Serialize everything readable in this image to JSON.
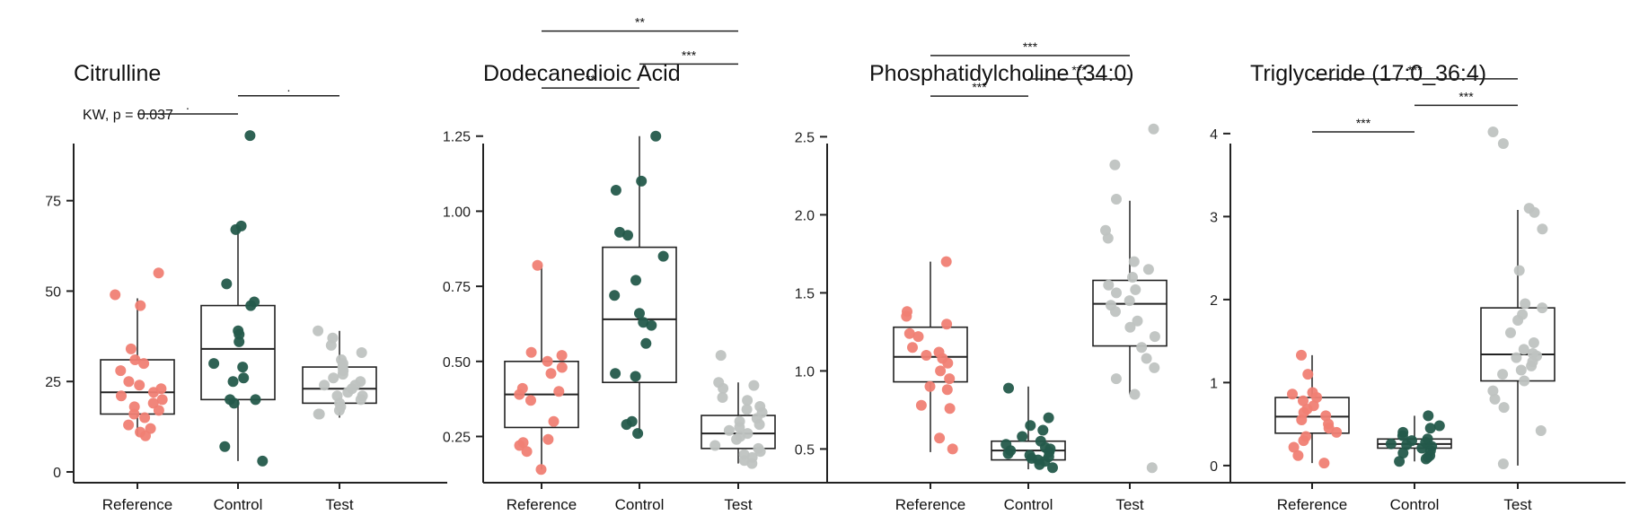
{
  "chart_data": [
    {
      "type": "box",
      "title": "Citrulline",
      "annotation": "KW, p = 0.037",
      "categories": [
        "Reference",
        "Control",
        "Test"
      ],
      "colors": {
        "Reference": "#F08074",
        "Control": "#245A4B",
        "Test": "#BFC3C1"
      },
      "ylim": [
        -1,
        97
      ],
      "yticks": [
        0,
        25,
        50,
        75
      ],
      "ytick_labels": [
        "0",
        "25",
        "50",
        "75"
      ],
      "boxes": [
        {
          "category": "Reference",
          "q1": 16,
          "median": 22,
          "q3": 31,
          "whisker_low": 10,
          "whisker_high": 48
        },
        {
          "category": "Control",
          "q1": 20,
          "median": 34,
          "q3": 46,
          "whisker_low": 3,
          "whisker_high": 68
        },
        {
          "category": "Test",
          "q1": 19,
          "median": 23,
          "q3": 29,
          "whisker_low": 15,
          "whisker_high": 39
        }
      ],
      "points": {
        "Reference": [
          55,
          49,
          46,
          34,
          31,
          30,
          28,
          25,
          24,
          23,
          22,
          21,
          20,
          19,
          18,
          17,
          16,
          15,
          13,
          12,
          11,
          10
        ],
        "Control": [
          93,
          68,
          67,
          52,
          47,
          46,
          39,
          38,
          36,
          30,
          29,
          26,
          25,
          20,
          20,
          19,
          7,
          3
        ],
        "Test": [
          39,
          37,
          35,
          33,
          31,
          30,
          29,
          28,
          27,
          26,
          25,
          24,
          24,
          23,
          22,
          21,
          21,
          20,
          19,
          18,
          17,
          16,
          16
        ]
      },
      "comparisons": [
        {
          "from": "Reference",
          "to": "Control",
          "label": ".",
          "y": 99
        },
        {
          "from": "Control",
          "to": "Test",
          "label": ".",
          "y": 104
        }
      ]
    },
    {
      "type": "box",
      "title": "Dodecanedioic  Acid",
      "categories": [
        "Reference",
        "Control",
        "Test"
      ],
      "colors": {
        "Reference": "#F08074",
        "Control": "#245A4B",
        "Test": "#BFC3C1"
      },
      "ylim": [
        0.12,
        1.3
      ],
      "yticks": [
        0.25,
        0.5,
        0.75,
        1.0,
        1.25
      ],
      "ytick_labels": [
        "0.25",
        "0.50",
        "0.75",
        "1.00",
        "1.25"
      ],
      "boxes": [
        {
          "category": "Reference",
          "q1": 0.28,
          "median": 0.39,
          "q3": 0.5,
          "whisker_low": 0.14,
          "whisker_high": 0.82
        },
        {
          "category": "Control",
          "q1": 0.43,
          "median": 0.64,
          "q3": 0.88,
          "whisker_low": 0.26,
          "whisker_high": 1.25
        },
        {
          "category": "Test",
          "q1": 0.21,
          "median": 0.26,
          "q3": 0.32,
          "whisker_low": 0.16,
          "whisker_high": 0.43
        }
      ],
      "points": {
        "Reference": [
          0.82,
          0.53,
          0.52,
          0.5,
          0.48,
          0.46,
          0.41,
          0.4,
          0.39,
          0.37,
          0.3,
          0.24,
          0.23,
          0.22,
          0.2,
          0.14
        ],
        "Control": [
          1.25,
          1.1,
          1.07,
          0.93,
          0.92,
          0.85,
          0.77,
          0.72,
          0.66,
          0.63,
          0.62,
          0.56,
          0.46,
          0.45,
          0.3,
          0.29,
          0.26
        ],
        "Test": [
          0.52,
          0.43,
          0.42,
          0.41,
          0.38,
          0.37,
          0.35,
          0.34,
          0.33,
          0.31,
          0.3,
          0.29,
          0.28,
          0.27,
          0.26,
          0.25,
          0.24,
          0.22,
          0.21,
          0.2,
          0.19,
          0.18,
          0.17,
          0.16
        ]
      },
      "comparisons": [
        {
          "from": "Reference",
          "to": "Control",
          "label": "**",
          "y": 1.41
        },
        {
          "from": "Control",
          "to": "Test",
          "label": "***",
          "y": 1.49
        },
        {
          "from": "Reference",
          "to": "Test",
          "label": "**",
          "y": 1.6
        }
      ]
    },
    {
      "type": "box",
      "title": "Phosphatidylcholine (34:0)",
      "categories": [
        "Reference",
        "Control",
        "Test"
      ],
      "colors": {
        "Reference": "#F08074",
        "Control": "#245A4B",
        "Test": "#BFC3C1"
      },
      "ylim": [
        0.33,
        2.6
      ],
      "yticks": [
        0.5,
        1.0,
        1.5,
        2.0,
        2.5
      ],
      "ytick_labels": [
        "0.5",
        "1.0",
        "1.5",
        "2.0",
        "2.5"
      ],
      "boxes": [
        {
          "category": "Reference",
          "q1": 0.93,
          "median": 1.09,
          "q3": 1.28,
          "whisker_low": 0.48,
          "whisker_high": 1.7
        },
        {
          "category": "Control",
          "q1": 0.43,
          "median": 0.49,
          "q3": 0.55,
          "whisker_low": 0.37,
          "whisker_high": 0.9
        },
        {
          "category": "Test",
          "q1": 1.16,
          "median": 1.43,
          "q3": 1.58,
          "whisker_low": 0.85,
          "whisker_high": 2.09
        }
      ],
      "points": {
        "Reference": [
          1.7,
          1.38,
          1.35,
          1.3,
          1.24,
          1.22,
          1.15,
          1.12,
          1.1,
          1.08,
          1.05,
          1.0,
          0.95,
          0.9,
          0.88,
          0.78,
          0.76,
          0.57,
          0.5
        ],
        "Control": [
          0.89,
          0.7,
          0.65,
          0.62,
          0.58,
          0.55,
          0.53,
          0.51,
          0.5,
          0.49,
          0.48,
          0.47,
          0.46,
          0.45,
          0.44,
          0.43,
          0.42,
          0.4,
          0.38
        ],
        "Test": [
          2.55,
          2.32,
          2.1,
          1.9,
          1.85,
          1.7,
          1.65,
          1.6,
          1.55,
          1.52,
          1.5,
          1.45,
          1.42,
          1.38,
          1.32,
          1.28,
          1.22,
          1.15,
          1.08,
          1.02,
          0.95,
          0.85,
          0.38
        ]
      },
      "comparisons": [
        {
          "from": "Reference",
          "to": "Control",
          "label": "***",
          "y": 2.76
        },
        {
          "from": "Control",
          "to": "Test",
          "label": "***",
          "y": 2.87
        },
        {
          "from": "Reference",
          "to": "Test",
          "label": "***",
          "y": 3.02
        }
      ]
    },
    {
      "type": "box",
      "title": "Triglyceride (17:0_36:4)",
      "categories": [
        "Reference",
        "Control",
        "Test"
      ],
      "colors": {
        "Reference": "#F08074",
        "Control": "#245A4B",
        "Test": "#BFC3C1"
      },
      "ylim": [
        -0.12,
        4.15
      ],
      "yticks": [
        0,
        1,
        2,
        3,
        4
      ],
      "ytick_labels": [
        "0",
        "1",
        "2",
        "3",
        "4"
      ],
      "boxes": [
        {
          "category": "Reference",
          "q1": 0.39,
          "median": 0.59,
          "q3": 0.82,
          "whisker_low": 0.03,
          "whisker_high": 1.33
        },
        {
          "category": "Control",
          "q1": 0.21,
          "median": 0.26,
          "q3": 0.32,
          "whisker_low": 0.05,
          "whisker_high": 0.6
        },
        {
          "category": "Test",
          "q1": 1.02,
          "median": 1.34,
          "q3": 1.9,
          "whisker_low": 0.0,
          "whisker_high": 3.08
        }
      ],
      "points": {
        "Reference": [
          1.33,
          1.1,
          0.88,
          0.86,
          0.82,
          0.78,
          0.72,
          0.68,
          0.64,
          0.6,
          0.55,
          0.5,
          0.45,
          0.4,
          0.35,
          0.3,
          0.22,
          0.12,
          0.03
        ],
        "Control": [
          0.6,
          0.48,
          0.45,
          0.4,
          0.36,
          0.32,
          0.3,
          0.28,
          0.26,
          0.25,
          0.23,
          0.21,
          0.18,
          0.15,
          0.12,
          0.1,
          0.08,
          0.05
        ],
        "Test": [
          4.02,
          3.88,
          3.1,
          3.05,
          2.85,
          2.35,
          1.95,
          1.9,
          1.82,
          1.75,
          1.6,
          1.48,
          1.4,
          1.35,
          1.32,
          1.3,
          1.25,
          1.2,
          1.15,
          1.1,
          1.02,
          0.9,
          0.8,
          0.7,
          0.42,
          0.02
        ]
      },
      "comparisons": [
        {
          "from": "Reference",
          "to": "Control",
          "label": "***",
          "y": 4.02
        },
        {
          "from": "Control",
          "to": "Test",
          "label": "***",
          "y": 4.34
        },
        {
          "from": "Reference",
          "to": "Test",
          "label": "***",
          "y": 4.66
        }
      ]
    }
  ]
}
